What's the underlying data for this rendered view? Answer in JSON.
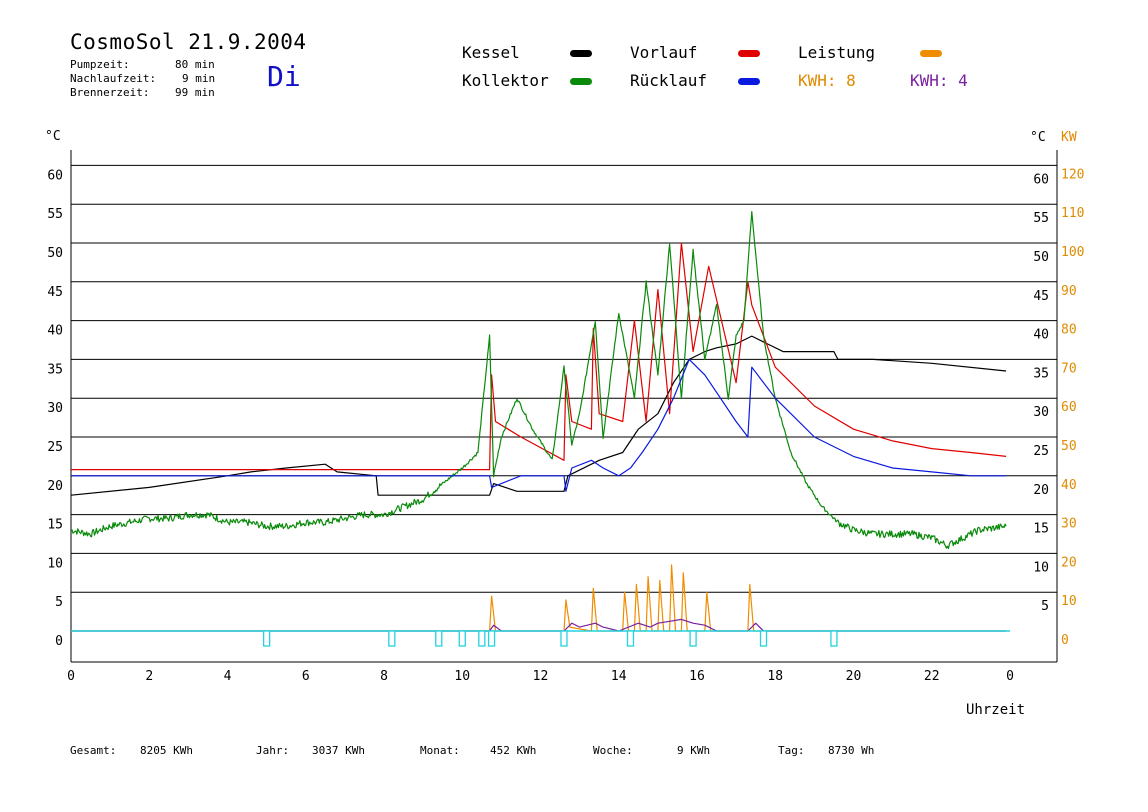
{
  "header": {
    "title": "CosmoSol 21.9.2004",
    "weekday": "Di",
    "info": [
      {
        "label": "Pumpzeit:",
        "value": "80 min"
      },
      {
        "label": "Nachlaufzeit:",
        "value": "9 min"
      },
      {
        "label": "Brennerzeit:",
        "value": "99 min"
      }
    ]
  },
  "legend": {
    "kessel": {
      "label": "Kessel",
      "color": "#000000"
    },
    "vorlauf": {
      "label": "Vorlauf",
      "color": "#e00000"
    },
    "leistung": {
      "label": "Leistung",
      "color": "#f08c00"
    },
    "kollektor": {
      "label": "Kollektor",
      "color": "#0a8a0a"
    },
    "ruecklauf": {
      "label": "Rücklauf",
      "color": "#0a1ae0"
    },
    "kwh_orange": "KWH: 8",
    "kwh_purple": "KWH: 4"
  },
  "footer": [
    {
      "label": "Gesamt:",
      "value": "8205 KWh"
    },
    {
      "label": "Jahr:",
      "value": "3037 KWh"
    },
    {
      "label": "Monat:",
      "value": "452 KWh"
    },
    {
      "label": "Woche:",
      "value": "9 KWh"
    },
    {
      "label": "Tag:",
      "value": "8730 Wh"
    }
  ],
  "chart_data": {
    "type": "line",
    "xlabel": "Uhrzeit",
    "ylabel_left": "°C",
    "ylabel_right_1": "°C",
    "ylabel_right_2": "KW",
    "xlim": [
      0,
      24
    ],
    "ylim": [
      0,
      60
    ],
    "ylim_kw": [
      0,
      120
    ],
    "x_ticks": [
      "0",
      "2",
      "4",
      "6",
      "8",
      "10",
      "12",
      "14",
      "16",
      "18",
      "20",
      "22",
      "0"
    ],
    "y_ticks_left": [
      "0",
      "5",
      "10",
      "15",
      "20",
      "25",
      "30",
      "35",
      "40",
      "45",
      "50",
      "55",
      "60"
    ],
    "y_ticks_right": [
      "5",
      "10",
      "15",
      "20",
      "25",
      "30",
      "35",
      "40",
      "45",
      "50",
      "55",
      "60"
    ],
    "y_ticks_kw": [
      "0",
      "10",
      "20",
      "30",
      "40",
      "50",
      "60",
      "70",
      "80",
      "90",
      "100",
      "110",
      "120"
    ],
    "grid": true,
    "series": [
      {
        "name": "Kessel",
        "color": "#000000",
        "x": [
          0,
          2,
          4,
          4.6,
          5.5,
          6.5,
          6.8,
          7.8,
          7.85,
          10.7,
          10.8,
          11.4,
          12.6,
          12.7,
          13.5,
          14.1,
          14.5,
          15.0,
          15.4,
          15.8,
          16.2,
          16.5,
          17.0,
          17.4,
          17.8,
          18.2,
          19.0,
          19.5,
          19.6,
          20.5,
          22,
          23.9
        ],
        "y": [
          17.5,
          18.5,
          20,
          20.5,
          21,
          21.5,
          20.5,
          20,
          17.5,
          17.5,
          19,
          18,
          18,
          20,
          22,
          23,
          26,
          28,
          32,
          35,
          36,
          36.5,
          37,
          38,
          37,
          36,
          36,
          36,
          35,
          35,
          34.5,
          33.5
        ]
      },
      {
        "name": "Vorlauf",
        "color": "#e00000",
        "x": [
          0,
          8.8,
          10.7,
          10.75,
          10.85,
          11.5,
          12.6,
          12.65,
          12.8,
          13.3,
          13.35,
          13.5,
          14.1,
          14.4,
          14.7,
          15.0,
          15.3,
          15.6,
          15.9,
          16.3,
          17.0,
          17.3,
          17.4,
          18.0,
          19.0,
          20.0,
          21.0,
          22.0,
          23.0,
          23.9
        ],
        "y": [
          20.8,
          20.8,
          20.8,
          33,
          27,
          25,
          22,
          33,
          27,
          26,
          39,
          28,
          27,
          40,
          27,
          44,
          28,
          50,
          36,
          47,
          32,
          45,
          42,
          34,
          29,
          26,
          24.5,
          23.5,
          23,
          22.5
        ]
      },
      {
        "name": "Kollektor",
        "color": "#0a8a0a",
        "x": [
          0,
          0.5,
          1.0,
          1.5,
          2.0,
          2.5,
          3.0,
          3.5,
          4.0,
          4.5,
          5.0,
          5.5,
          6.0,
          6.5,
          7.0,
          7.5,
          8.0,
          8.5,
          9.0,
          9.5,
          10.0,
          10.4,
          10.7,
          10.8,
          11.0,
          11.4,
          11.8,
          12.3,
          12.6,
          12.8,
          13.0,
          13.4,
          13.6,
          14.0,
          14.4,
          14.7,
          15.0,
          15.3,
          15.6,
          15.9,
          16.2,
          16.5,
          16.8,
          17.0,
          17.2,
          17.4,
          17.7,
          18.0,
          18.4,
          18.8,
          19.2,
          19.6,
          20.0,
          20.5,
          21.0,
          21.5,
          22.0,
          22.4,
          22.8,
          23.2,
          23.9
        ],
        "y": [
          13,
          12.5,
          13.5,
          14,
          14.5,
          14.5,
          15,
          15,
          14,
          14,
          13.5,
          13.5,
          14,
          14,
          14.5,
          15,
          15,
          16,
          17,
          19,
          21,
          23,
          38,
          20,
          25,
          30,
          26,
          22,
          34,
          24,
          28,
          40,
          25,
          41,
          30,
          45,
          33,
          50,
          30,
          49,
          35,
          42,
          30,
          38,
          40,
          54,
          38,
          30,
          23,
          19,
          16,
          14,
          13,
          12.5,
          12.5,
          12.5,
          12,
          11,
          12,
          13,
          13.5
        ]
      },
      {
        "name": "Rücklauf",
        "color": "#0a1ae0",
        "x": [
          0,
          10.7,
          10.75,
          11.5,
          12.6,
          12.65,
          12.8,
          13.3,
          13.6,
          14.0,
          14.3,
          14.6,
          15.0,
          15.4,
          15.8,
          16.2,
          16.6,
          17.0,
          17.3,
          17.4,
          18.0,
          19.0,
          20.0,
          21.0,
          22.0,
          23.0,
          23.9
        ],
        "y": [
          20,
          20,
          18.5,
          20,
          20,
          18,
          21,
          22,
          21,
          20,
          21,
          23,
          26,
          30,
          35,
          33,
          30,
          27,
          25,
          34,
          30,
          25,
          22.5,
          21,
          20.5,
          20,
          20
        ]
      },
      {
        "name": "Leistung",
        "color": "#f08c00",
        "axis": "kw",
        "x": [
          0,
          10.7,
          10.75,
          10.85,
          12.6,
          12.65,
          12.75,
          13.3,
          13.35,
          13.45,
          14.1,
          14.15,
          14.25,
          14.4,
          14.45,
          14.55,
          14.7,
          14.75,
          14.85,
          15.0,
          15.05,
          15.15,
          15.3,
          15.35,
          15.45,
          15.6,
          15.65,
          15.75,
          16.2,
          16.25,
          16.35,
          17.3,
          17.35,
          17.45,
          23.9
        ],
        "y": [
          0,
          0,
          9,
          0,
          0,
          8,
          1,
          0,
          11,
          0,
          0,
          10,
          0,
          0,
          12,
          0,
          0,
          14,
          0,
          0,
          13,
          0,
          0,
          17,
          0,
          0,
          15,
          0,
          0,
          10,
          0,
          0,
          12,
          0,
          0
        ]
      },
      {
        "name": "Leistung 2",
        "color": "#7a1fa0",
        "axis": "kw",
        "x": [
          0,
          10.7,
          10.8,
          11.0,
          12.6,
          12.8,
          13.0,
          13.4,
          13.6,
          14.0,
          14.5,
          14.8,
          15.0,
          15.3,
          15.6,
          15.9,
          16.2,
          16.5,
          17.3,
          17.5,
          17.7,
          23.9
        ],
        "y": [
          0,
          0,
          1.5,
          0,
          0,
          2,
          1,
          2,
          1,
          0,
          2,
          1,
          2,
          2.5,
          3,
          2,
          1.5,
          0,
          0,
          2,
          0,
          0
        ]
      }
    ],
    "markers": {
      "color": "#22d3e0",
      "x": [
        5.0,
        8.2,
        9.4,
        10.0,
        10.5,
        10.75,
        12.6,
        14.3,
        15.9,
        17.7,
        19.5
      ]
    }
  }
}
